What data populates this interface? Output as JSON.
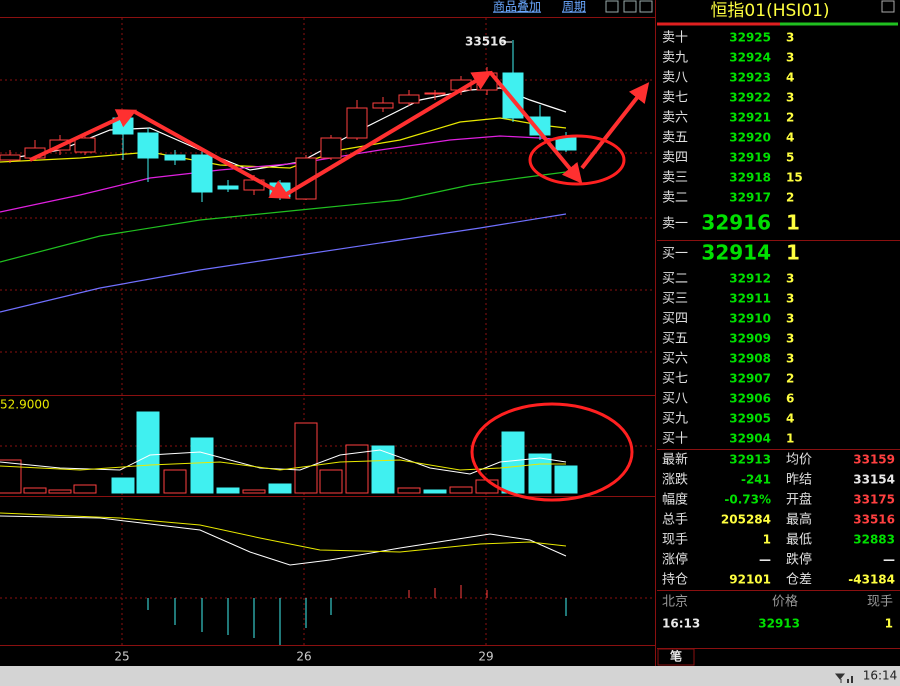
{
  "toolbar": {
    "overlay": "商品叠加",
    "period": "周期"
  },
  "header": {
    "title": "恒指01(HSI01)"
  },
  "chart": {
    "high_label": 33516,
    "volume_label": "52.9000",
    "dates": [
      "25",
      "26",
      "29"
    ]
  },
  "order_book": {
    "asks": [
      {
        "label": "卖十",
        "price": 32925,
        "volume": 3
      },
      {
        "label": "卖九",
        "price": 32924,
        "volume": 3
      },
      {
        "label": "卖八",
        "price": 32923,
        "volume": 4
      },
      {
        "label": "卖七",
        "price": 32922,
        "volume": 3
      },
      {
        "label": "卖六",
        "price": 32921,
        "volume": 2
      },
      {
        "label": "卖五",
        "price": 32920,
        "volume": 4
      },
      {
        "label": "卖四",
        "price": 32919,
        "volume": 5
      },
      {
        "label": "卖三",
        "price": 32918,
        "volume": 15
      },
      {
        "label": "卖二",
        "price": 32917,
        "volume": 2
      }
    ],
    "best_ask": {
      "label": "卖一",
      "price": 32916,
      "volume": 1
    },
    "best_bid": {
      "label": "买一",
      "price": 32914,
      "volume": 1
    },
    "bids": [
      {
        "label": "买二",
        "price": 32912,
        "volume": 3
      },
      {
        "label": "买三",
        "price": 32911,
        "volume": 3
      },
      {
        "label": "买四",
        "price": 32910,
        "volume": 3
      },
      {
        "label": "买五",
        "price": 32909,
        "volume": 3
      },
      {
        "label": "买六",
        "price": 32908,
        "volume": 3
      },
      {
        "label": "买七",
        "price": 32907,
        "volume": 2
      },
      {
        "label": "买八",
        "price": 32906,
        "volume": 6
      },
      {
        "label": "买九",
        "price": 32905,
        "volume": 4
      },
      {
        "label": "买十",
        "price": 32904,
        "volume": 1
      }
    ]
  },
  "stats": [
    {
      "label": "最新",
      "value": 32913,
      "color": "#00e000"
    },
    {
      "label": "均价",
      "value": 33159,
      "color": "#ff4040"
    },
    {
      "label": "涨跌",
      "value": -241,
      "color": "#00e000"
    },
    {
      "label": "昨结",
      "value": 33154,
      "color": "#e8e8e8"
    },
    {
      "label": "幅度",
      "value": "-0.73%",
      "color": "#00e000"
    },
    {
      "label": "开盘",
      "value": 33175,
      "color": "#ff4040"
    },
    {
      "label": "总手",
      "value": 205284,
      "color": "#ffff40"
    },
    {
      "label": "最高",
      "value": 33516,
      "color": "#ff4040"
    },
    {
      "label": "现手",
      "value": 1,
      "color": "#ffff40"
    },
    {
      "label": "最低",
      "value": 32883,
      "color": "#00e000"
    },
    {
      "label": "涨停",
      "value": "—",
      "color": "#e8e8e8"
    },
    {
      "label": "跌停",
      "value": "—",
      "color": "#e8e8e8"
    },
    {
      "label": "持仓",
      "value": 92101,
      "color": "#ffff40"
    },
    {
      "label": "仓差",
      "value": -43184,
      "color": "#ffff40"
    }
  ],
  "ticks": {
    "columns": [
      "北京",
      "价格",
      "现手"
    ],
    "rows": [
      [
        "16:13",
        32913,
        1
      ]
    ]
  },
  "tabs": [
    "笔"
  ],
  "status": {
    "time": "16:14"
  }
}
